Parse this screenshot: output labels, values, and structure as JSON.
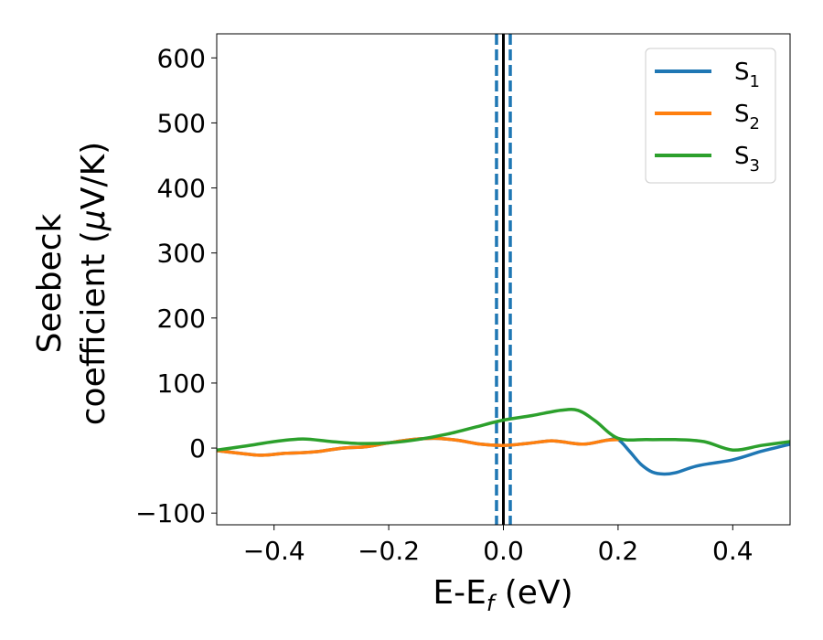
{
  "chart_data": {
    "type": "line",
    "xlabel_main": "E-E",
    "xlabel_sub": "f",
    "xlabel_unit": " (eV)",
    "ylabel_line1": "Seebeck",
    "ylabel_line2_text": "coefficient  (",
    "ylabel_line2_mu": "μ",
    "ylabel_line2_unit": "V/K)",
    "xlim": [
      -0.5,
      0.5
    ],
    "ylim": [
      -118,
      637
    ],
    "xticks": [
      -0.4,
      -0.2,
      0.0,
      0.2,
      0.4
    ],
    "xtick_labels": [
      "−0.4",
      "−0.2",
      "0.0",
      "0.2",
      "0.4"
    ],
    "yticks": [
      -100,
      0,
      100,
      200,
      300,
      400,
      500,
      600
    ],
    "ytick_labels": [
      "−100",
      "0",
      "100",
      "200",
      "300",
      "400",
      "500",
      "600"
    ],
    "grid": false,
    "legend_position": "top-right",
    "vlines": [
      {
        "x": 0.0,
        "style": "solid",
        "color": "#000000"
      },
      {
        "x": -0.012,
        "style": "dashed",
        "color": "#1f77b4"
      },
      {
        "x": 0.012,
        "style": "dashed",
        "color": "#1f77b4"
      }
    ],
    "series": [
      {
        "name_main": "S",
        "name_sub": "1",
        "color": "#1f77b4",
        "x": [
          -0.5,
          -0.45,
          -0.42,
          -0.38,
          -0.35,
          -0.32,
          -0.28,
          -0.24,
          -0.2,
          -0.16,
          -0.12,
          -0.08,
          -0.04,
          0.0,
          0.04,
          0.08,
          0.1,
          0.14,
          0.18,
          0.2,
          0.22,
          0.24,
          0.26,
          0.28,
          0.3,
          0.34,
          0.4,
          0.45,
          0.5
        ],
        "y": [
          -4,
          -9,
          -11,
          -8,
          -7,
          -5,
          0,
          2,
          8,
          13,
          15,
          12,
          6,
          4,
          7,
          11,
          10,
          6,
          12,
          13,
          -5,
          -25,
          -37,
          -40,
          -38,
          -27,
          -18,
          -5,
          6
        ]
      },
      {
        "name_main": "S",
        "name_sub": "2",
        "color": "#ff7f0e",
        "x": [
          -0.5,
          -0.45,
          -0.42,
          -0.38,
          -0.35,
          -0.32,
          -0.28,
          -0.24,
          -0.2,
          -0.16,
          -0.12,
          -0.08,
          -0.04,
          0.0,
          0.04,
          0.08,
          0.1,
          0.14,
          0.18,
          0.2
        ],
        "y": [
          -4,
          -9,
          -11,
          -8,
          -7,
          -5,
          0,
          2,
          8,
          13,
          15,
          12,
          6,
          4,
          7,
          11,
          10,
          6,
          12,
          13
        ]
      },
      {
        "name_main": "S",
        "name_sub": "3",
        "color": "#2ca02c",
        "x": [
          -0.5,
          -0.45,
          -0.4,
          -0.35,
          -0.3,
          -0.25,
          -0.2,
          -0.15,
          -0.1,
          -0.05,
          0.0,
          0.05,
          0.1,
          0.13,
          0.16,
          0.2,
          0.25,
          0.3,
          0.35,
          0.4,
          0.45,
          0.5
        ],
        "y": [
          -3,
          3,
          10,
          14,
          10,
          7,
          8,
          13,
          21,
          32,
          43,
          50,
          58,
          58,
          42,
          15,
          13,
          13,
          10,
          -3,
          4,
          10
        ]
      }
    ]
  }
}
